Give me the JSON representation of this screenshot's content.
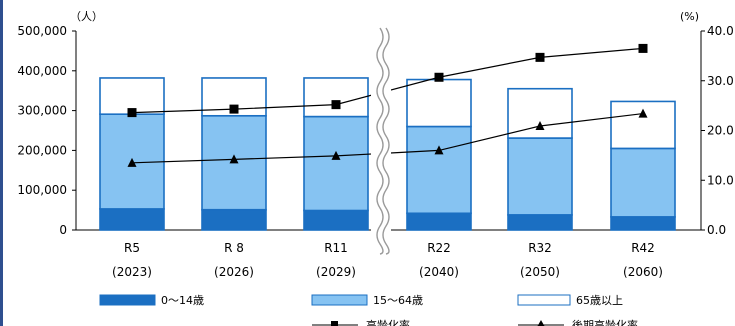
{
  "chart_data": {
    "type": "bar",
    "stacked": true,
    "categories": [
      "R5",
      "R 8",
      "R11",
      "R22",
      "R32",
      "R42"
    ],
    "category_years": [
      "(2023)",
      "(2026)",
      "(2029)",
      "(2040)",
      "(2050)",
      "(2060)"
    ],
    "axis_break_between": [
      "R11",
      "R22"
    ],
    "y_left": {
      "unit_label": "（人）",
      "ylim": [
        0,
        500000
      ],
      "ticks": [
        0,
        100000,
        200000,
        300000,
        400000,
        500000
      ],
      "tick_labels": [
        "0",
        "100,000",
        "200,000",
        "300,000",
        "400,000",
        "500,000"
      ]
    },
    "y_right": {
      "unit_label": "(%)",
      "ylim": [
        0,
        40
      ],
      "ticks": [
        0,
        10,
        20,
        30,
        40
      ],
      "tick_labels": [
        "0.0",
        "10.0",
        "20.0",
        "30.0",
        "40.0"
      ]
    },
    "series": [
      {
        "name": "0～14歳",
        "type": "bar",
        "axis": "left",
        "color": "#1B6FC2",
        "values": [
          53000,
          51000,
          49000,
          42000,
          38000,
          33000
        ]
      },
      {
        "name": "15～64歳",
        "type": "bar",
        "axis": "left",
        "color": "#86C3F2",
        "values": [
          238000,
          236000,
          236000,
          218000,
          193000,
          172000
        ]
      },
      {
        "name": "65歳以上",
        "type": "bar",
        "axis": "left",
        "color": "#FFFFFF",
        "values": [
          91000,
          95000,
          97000,
          118000,
          124000,
          118000
        ]
      },
      {
        "name": "高齢化率",
        "type": "line",
        "axis": "right",
        "marker": "square",
        "color": "#000000",
        "values": [
          23.6,
          24.3,
          25.2,
          30.7,
          34.7,
          36.5
        ]
      },
      {
        "name": "後期高齢化率",
        "type": "line",
        "axis": "right",
        "marker": "triangle",
        "color": "#000000",
        "values": [
          13.5,
          14.2,
          14.9,
          16.0,
          20.9,
          23.4
        ]
      }
    ],
    "legend": {
      "position": "bottom"
    },
    "grid": false
  }
}
